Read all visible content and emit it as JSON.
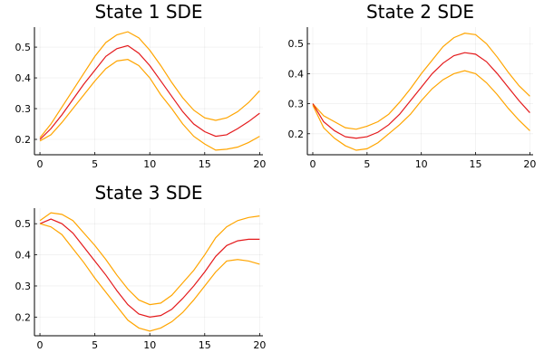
{
  "chart_data": [
    {
      "type": "line",
      "title": "State 1 SDE",
      "xlim": [
        -0.5,
        20.3
      ],
      "ylim": [
        0.15,
        0.565
      ],
      "xticks": [
        0,
        5,
        10,
        15,
        20
      ],
      "yticks": [
        0.2,
        0.3,
        0.4,
        0.5
      ],
      "grid": true,
      "legend": "none",
      "colors": {
        "mean": "#e41a1c",
        "bound": "#ffa500"
      },
      "series": [
        {
          "role": "upper",
          "x": [
            0,
            1,
            2,
            3,
            4,
            5,
            6,
            7,
            8,
            9,
            10,
            11,
            12,
            13,
            14,
            15,
            16,
            17,
            18,
            19,
            20
          ],
          "y": [
            0.205,
            0.25,
            0.305,
            0.36,
            0.415,
            0.47,
            0.515,
            0.54,
            0.55,
            0.53,
            0.49,
            0.44,
            0.385,
            0.335,
            0.295,
            0.27,
            0.262,
            0.27,
            0.29,
            0.32,
            0.358
          ]
        },
        {
          "role": "mean",
          "x": [
            0,
            1,
            2,
            3,
            4,
            5,
            6,
            7,
            8,
            9,
            10,
            11,
            12,
            13,
            14,
            15,
            16,
            17,
            18,
            19,
            20
          ],
          "y": [
            0.2,
            0.235,
            0.28,
            0.33,
            0.38,
            0.425,
            0.47,
            0.495,
            0.505,
            0.48,
            0.44,
            0.39,
            0.34,
            0.29,
            0.25,
            0.225,
            0.21,
            0.215,
            0.235,
            0.258,
            0.285
          ]
        },
        {
          "role": "lower",
          "x": [
            0,
            1,
            2,
            3,
            4,
            5,
            6,
            7,
            8,
            9,
            10,
            11,
            12,
            13,
            14,
            15,
            16,
            17,
            18,
            19,
            20
          ],
          "y": [
            0.195,
            0.215,
            0.255,
            0.3,
            0.345,
            0.39,
            0.43,
            0.455,
            0.46,
            0.44,
            0.4,
            0.345,
            0.3,
            0.25,
            0.21,
            0.185,
            0.165,
            0.168,
            0.175,
            0.19,
            0.21
          ]
        }
      ]
    },
    {
      "type": "line",
      "title": "State 2 SDE",
      "xlim": [
        -0.5,
        20.3
      ],
      "ylim": [
        0.13,
        0.555
      ],
      "xticks": [
        0,
        5,
        10,
        15,
        20
      ],
      "yticks": [
        0.2,
        0.3,
        0.4,
        0.5
      ],
      "grid": true,
      "legend": "none",
      "colors": {
        "mean": "#e41a1c",
        "bound": "#ffa500"
      },
      "series": [
        {
          "role": "upper",
          "x": [
            0,
            1,
            2,
            3,
            4,
            5,
            6,
            7,
            8,
            9,
            10,
            11,
            12,
            13,
            14,
            15,
            16,
            17,
            18,
            19,
            20
          ],
          "y": [
            0.3,
            0.26,
            0.24,
            0.22,
            0.215,
            0.225,
            0.24,
            0.265,
            0.305,
            0.35,
            0.4,
            0.445,
            0.49,
            0.52,
            0.535,
            0.53,
            0.5,
            0.455,
            0.405,
            0.36,
            0.325
          ]
        },
        {
          "role": "mean",
          "x": [
            0,
            1,
            2,
            3,
            4,
            5,
            6,
            7,
            8,
            9,
            10,
            11,
            12,
            13,
            14,
            15,
            16,
            17,
            18,
            19,
            20
          ],
          "y": [
            0.3,
            0.24,
            0.21,
            0.19,
            0.185,
            0.19,
            0.205,
            0.23,
            0.265,
            0.31,
            0.355,
            0.4,
            0.435,
            0.46,
            0.47,
            0.465,
            0.44,
            0.4,
            0.355,
            0.31,
            0.27
          ]
        },
        {
          "role": "lower",
          "x": [
            0,
            1,
            2,
            3,
            4,
            5,
            6,
            7,
            8,
            9,
            10,
            11,
            12,
            13,
            14,
            15,
            16,
            17,
            18,
            19,
            20
          ],
          "y": [
            0.295,
            0.22,
            0.185,
            0.16,
            0.145,
            0.15,
            0.17,
            0.2,
            0.23,
            0.265,
            0.31,
            0.35,
            0.38,
            0.4,
            0.41,
            0.4,
            0.37,
            0.33,
            0.285,
            0.245,
            0.21
          ]
        }
      ]
    },
    {
      "type": "line",
      "title": "State 3 SDE",
      "xlim": [
        -0.5,
        20.3
      ],
      "ylim": [
        0.14,
        0.55
      ],
      "xticks": [
        0,
        5,
        10,
        15,
        20
      ],
      "yticks": [
        0.2,
        0.3,
        0.4,
        0.5
      ],
      "grid": true,
      "legend": "none",
      "colors": {
        "mean": "#e41a1c",
        "bound": "#ffa500"
      },
      "series": [
        {
          "role": "upper",
          "x": [
            0,
            1,
            2,
            3,
            4,
            5,
            6,
            7,
            8,
            9,
            10,
            11,
            12,
            13,
            14,
            15,
            16,
            17,
            18,
            19,
            20
          ],
          "y": [
            0.51,
            0.535,
            0.53,
            0.51,
            0.47,
            0.43,
            0.385,
            0.335,
            0.29,
            0.255,
            0.24,
            0.245,
            0.27,
            0.31,
            0.35,
            0.4,
            0.455,
            0.49,
            0.51,
            0.52,
            0.525
          ]
        },
        {
          "role": "mean",
          "x": [
            0,
            1,
            2,
            3,
            4,
            5,
            6,
            7,
            8,
            9,
            10,
            11,
            12,
            13,
            14,
            15,
            16,
            17,
            18,
            19,
            20
          ],
          "y": [
            0.5,
            0.515,
            0.5,
            0.47,
            0.425,
            0.38,
            0.335,
            0.285,
            0.24,
            0.21,
            0.2,
            0.205,
            0.225,
            0.26,
            0.3,
            0.345,
            0.395,
            0.43,
            0.445,
            0.45,
            0.45
          ]
        },
        {
          "role": "lower",
          "x": [
            0,
            1,
            2,
            3,
            4,
            5,
            6,
            7,
            8,
            9,
            10,
            11,
            12,
            13,
            14,
            15,
            16,
            17,
            18,
            19,
            20
          ],
          "y": [
            0.5,
            0.49,
            0.465,
            0.42,
            0.375,
            0.325,
            0.28,
            0.235,
            0.19,
            0.165,
            0.155,
            0.165,
            0.185,
            0.215,
            0.255,
            0.3,
            0.345,
            0.38,
            0.385,
            0.38,
            0.37
          ]
        }
      ]
    }
  ]
}
